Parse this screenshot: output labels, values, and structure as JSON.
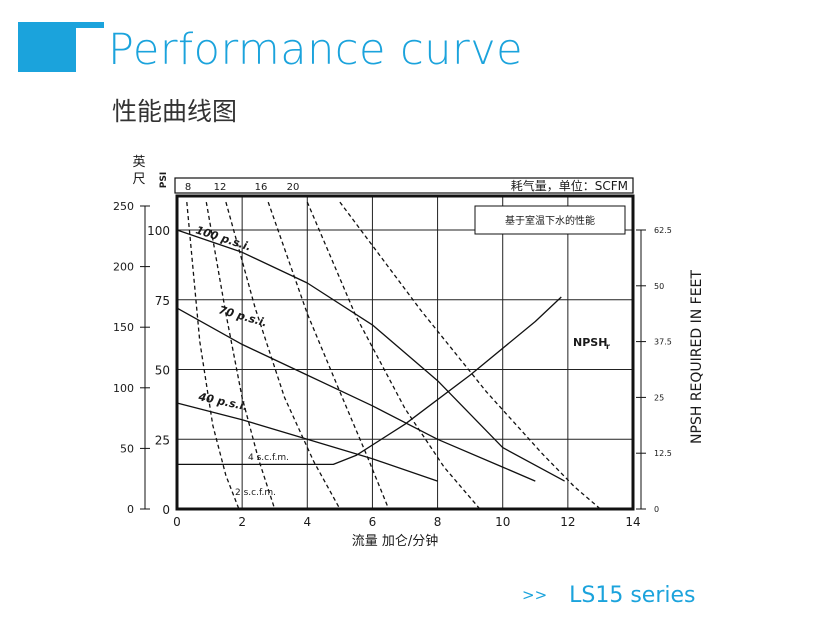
{
  "header": {
    "title": "Performance curve",
    "subtitle": "性能曲线图"
  },
  "footer": {
    "arrows": ">>",
    "series": "LS15 series"
  },
  "chart_data": {
    "type": "line",
    "xlabel": "流量 加仑/分钟",
    "ylabel_feet": "英尺",
    "ylabel_psi": "PSI",
    "ylabel_right": "NPSH REQUIRED IN FEET",
    "air_label": "耗气量，单位：SCFM",
    "note": "基于室温下水的性能",
    "xlim": [
      0,
      14
    ],
    "ylim_psi": [
      0,
      110
    ],
    "ylim_feet": [
      0,
      250
    ],
    "ylim_npsh": [
      0,
      75
    ],
    "x_ticks": [
      "0",
      "2",
      "4",
      "6",
      "8",
      "10",
      "12",
      "14"
    ],
    "psi_ticks": [
      "0",
      "25",
      "50",
      "75",
      "100"
    ],
    "feet_ticks": [
      "0",
      "50",
      "100",
      "150",
      "200",
      "250"
    ],
    "npsh_ticks": [
      "0",
      "12.5",
      "25",
      "37.5",
      "50",
      "62.5"
    ],
    "scfm_ticks": [
      "8",
      "12",
      "16",
      "20"
    ],
    "series": [
      {
        "name": "100 p.s.i.",
        "style": "solid",
        "x": [
          0,
          2,
          4,
          6,
          8,
          10,
          11.9
        ],
        "y": [
          100,
          92,
          81,
          66,
          46,
          22,
          10
        ]
      },
      {
        "name": "70 p.s.i.",
        "style": "solid",
        "x": [
          0,
          2,
          4,
          6,
          8,
          10,
          11.0
        ],
        "y": [
          72,
          59,
          48,
          37,
          25,
          15,
          10
        ]
      },
      {
        "name": "40 p.s.i.",
        "style": "solid",
        "x": [
          0,
          2,
          4,
          6,
          8
        ],
        "y": [
          38,
          32,
          25,
          18,
          10
        ]
      },
      {
        "name": "NPSHr",
        "style": "solid",
        "axis": "npsh",
        "x": [
          0,
          2,
          4,
          4.8,
          5.5,
          7,
          9,
          11,
          11.8
        ],
        "y": [
          10,
          10,
          10,
          10,
          12,
          19,
          30,
          42,
          47.5
        ]
      },
      {
        "name": "2 s.c.f.m.",
        "style": "dashed",
        "x": [
          0.3,
          0.7,
          1.1,
          1.5,
          1.9
        ],
        "y": [
          110,
          60,
          30,
          12,
          0
        ]
      },
      {
        "name": "4 s.c.f.m.",
        "style": "dashed",
        "x": [
          0.9,
          1.5,
          2.0,
          2.5,
          3.0
        ],
        "y": [
          110,
          70,
          40,
          18,
          0
        ]
      },
      {
        "name": "8",
        "style": "dashed",
        "x": [
          1.5,
          2.4,
          3.3,
          4.2,
          5.0
        ],
        "y": [
          110,
          72,
          40,
          17,
          0
        ]
      },
      {
        "name": "12",
        "style": "dashed",
        "x": [
          2.8,
          4.0,
          5.0,
          5.8,
          6.5
        ],
        "y": [
          110,
          70,
          42,
          20,
          0
        ]
      },
      {
        "name": "16",
        "style": "dashed",
        "x": [
          4.0,
          5.5,
          7.0,
          8.2,
          9.3
        ],
        "y": [
          110,
          69,
          36,
          15,
          0
        ]
      },
      {
        "name": "20",
        "style": "dashed",
        "x": [
          5.0,
          7.5,
          9.5,
          11.2,
          12.2,
          13.0
        ],
        "y": [
          110,
          71,
          42,
          20,
          8,
          0
        ]
      }
    ],
    "curve_labels": {
      "psi100": "100 p.s.i.",
      "psi70": "70 p.s.i.",
      "psi40": "40 p.s.i.",
      "npsh": "NPSH",
      "npsh_sub": "r",
      "scfm4": "4 s.c.f.m.",
      "scfm2": "2 s.c.f.m."
    }
  }
}
